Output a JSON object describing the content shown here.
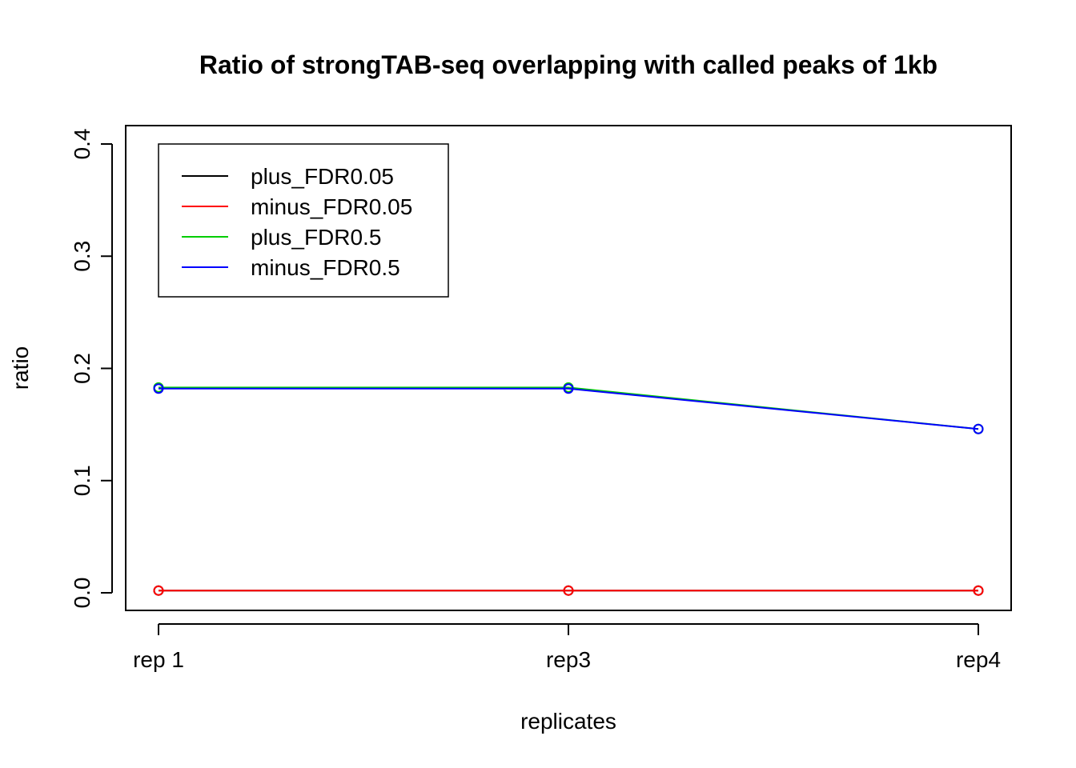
{
  "chart_data": {
    "type": "line",
    "title": "Ratio of strongTAB-seq overlapping with called peaks of 1kb",
    "xlabel": "replicates",
    "ylabel": "ratio",
    "categories": [
      "rep 1",
      "rep3",
      "rep4"
    ],
    "ylim": [
      0,
      0.4
    ],
    "yticks": [
      "0.0",
      "0.1",
      "0.2",
      "0.3",
      "0.4"
    ],
    "legend_position": "top-left",
    "grid": false,
    "series": [
      {
        "name": "plus_FDR0.05",
        "color": "#000000",
        "values": [
          0.002,
          0.002,
          0.002
        ]
      },
      {
        "name": "minus_FDR0.05",
        "color": "#ff0000",
        "values": [
          0.002,
          0.002,
          0.002
        ]
      },
      {
        "name": "plus_FDR0.5",
        "color": "#00cd00",
        "values": [
          0.183,
          0.183,
          0.146
        ]
      },
      {
        "name": "minus_FDR0.5",
        "color": "#0000ff",
        "values": [
          0.182,
          0.182,
          0.146
        ]
      }
    ]
  }
}
